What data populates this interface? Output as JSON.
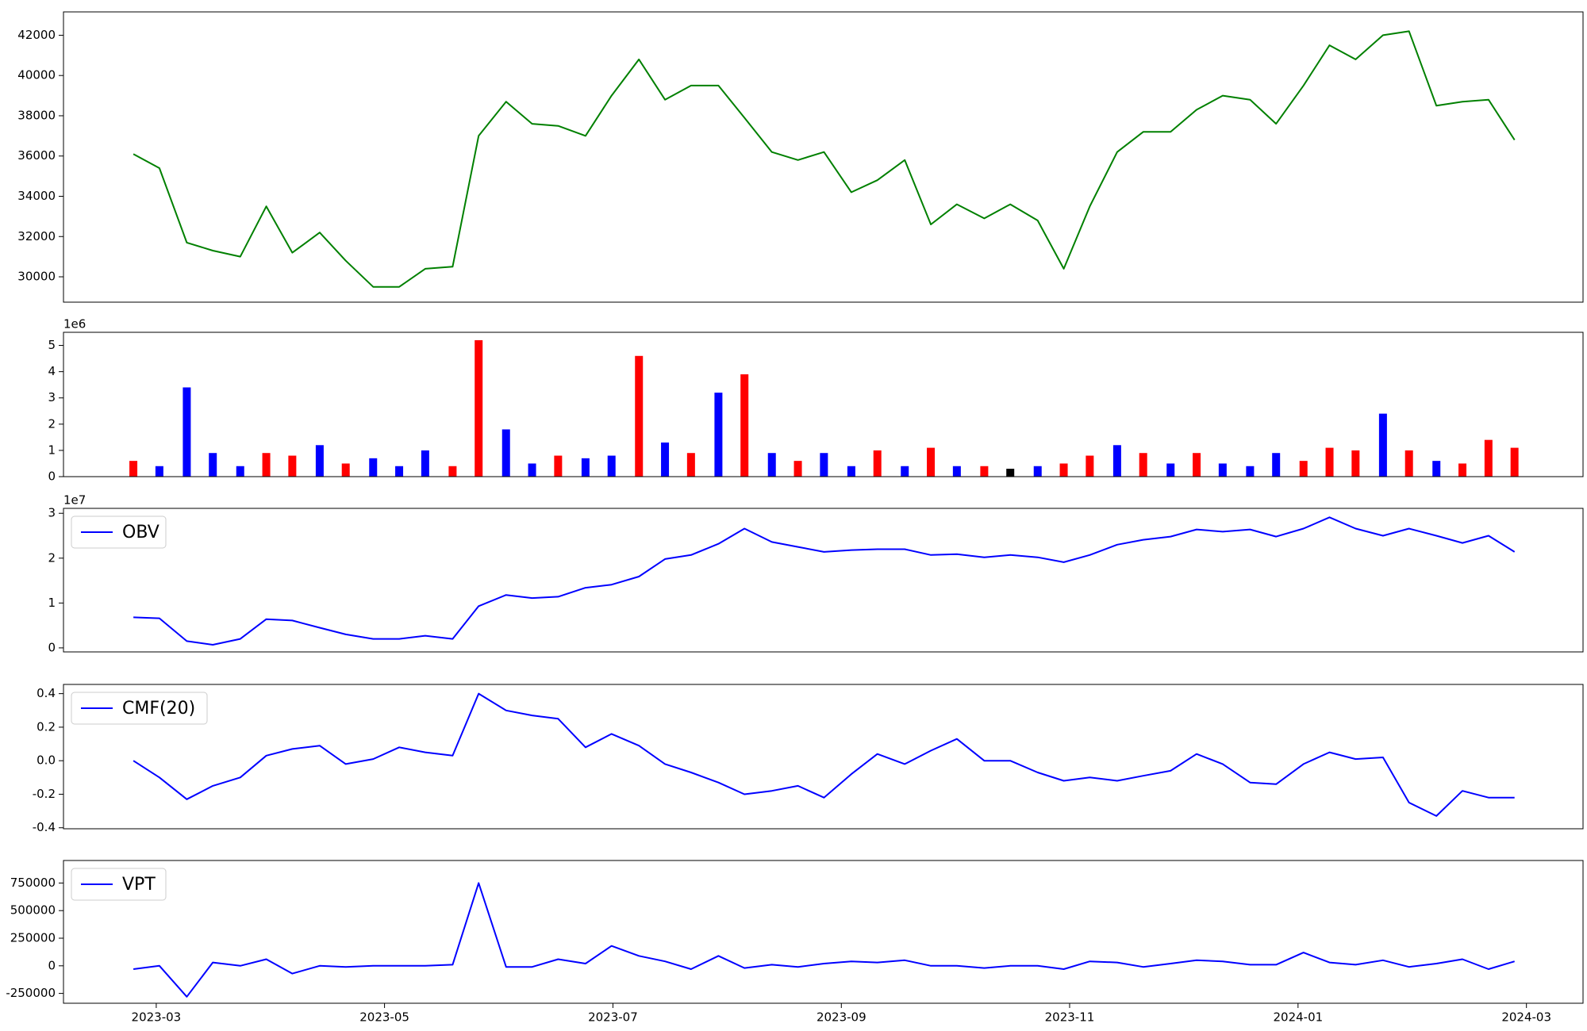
{
  "chart_data": {
    "type": "multi",
    "x": [
      2023.15,
      2023.169,
      2023.189,
      2023.208,
      2023.228,
      2023.247,
      2023.266,
      2023.286,
      2023.305,
      2023.325,
      2023.344,
      2023.363,
      2023.383,
      2023.402,
      2023.422,
      2023.441,
      2023.46,
      2023.48,
      2023.499,
      2023.519,
      2023.538,
      2023.557,
      2023.577,
      2023.596,
      2023.616,
      2023.635,
      2023.654,
      2023.674,
      2023.693,
      2023.713,
      2023.732,
      2023.751,
      2023.771,
      2023.79,
      2023.81,
      2023.829,
      2023.848,
      2023.868,
      2023.887,
      2023.907,
      2023.926,
      2023.945,
      2023.965,
      2023.984,
      2024.004,
      2024.023,
      2024.042,
      2024.062,
      2024.081,
      2024.101,
      2024.12,
      2024.139,
      2024.158
    ],
    "xlim": [
      2023.099,
      2024.208
    ],
    "xticks": [
      {
        "value": 2023.1667,
        "label": "2023-03"
      },
      {
        "value": 2023.3333,
        "label": "2023-05"
      },
      {
        "value": 2023.5,
        "label": "2023-07"
      },
      {
        "value": 2023.6667,
        "label": "2023-09"
      },
      {
        "value": 2023.8333,
        "label": "2023-11"
      },
      {
        "value": 2024.0,
        "label": "2024-01"
      },
      {
        "value": 2024.1667,
        "label": "2024-03"
      }
    ],
    "panels": [
      {
        "type": "line",
        "ylim": [
          28740,
          43160
        ],
        "yticks": [
          30000,
          32000,
          34000,
          36000,
          38000,
          40000,
          42000
        ],
        "series": [
          {
            "color": "#008000",
            "values": [
              36100,
              35400,
              31700,
              31300,
              31000,
              33500,
              31200,
              32200,
              30800,
              29500,
              29500,
              30400,
              30500,
              37000,
              38700,
              37600,
              37500,
              37000,
              39000,
              40800,
              38800,
              39500,
              39500,
              37900,
              36200,
              35800,
              36200,
              34200,
              34800,
              35800,
              32600,
              33600,
              32900,
              33600,
              32800,
              30400,
              33500,
              36200,
              37200,
              37200,
              38300,
              39000,
              38800,
              37600,
              39500,
              41500,
              40800,
              42000,
              42200,
              38500,
              38700,
              38800,
              36800
            ]
          }
        ]
      },
      {
        "type": "bar",
        "ylim": [
          0,
          5.5
        ],
        "yticks": [
          0,
          1,
          2,
          3,
          4,
          5
        ],
        "offset_label": "1e6",
        "values": [
          0.6,
          0.4,
          3.4,
          0.9,
          0.4,
          0.9,
          0.8,
          1.2,
          0.5,
          0.7,
          0.4,
          1.0,
          0.4,
          5.2,
          1.8,
          0.5,
          0.8,
          0.7,
          0.8,
          4.6,
          1.3,
          0.9,
          3.2,
          3.9,
          0.9,
          0.6,
          0.9,
          0.4,
          1.0,
          0.4,
          1.1,
          0.4,
          0.4,
          0.3,
          0.4,
          0.5,
          0.8,
          1.2,
          0.9,
          0.5,
          0.9,
          0.5,
          0.4,
          0.9,
          0.6,
          1.1,
          1.0,
          2.4,
          1.0,
          0.6,
          0.5,
          1.4,
          1.1
        ],
        "colors": [
          "red",
          "blue",
          "blue",
          "blue",
          "blue",
          "red",
          "red",
          "blue",
          "red",
          "blue",
          "blue",
          "blue",
          "red",
          "red",
          "blue",
          "blue",
          "red",
          "blue",
          "blue",
          "red",
          "blue",
          "red",
          "blue",
          "red",
          "blue",
          "red",
          "blue",
          "blue",
          "red",
          "blue",
          "red",
          "blue",
          "red",
          "black",
          "blue",
          "red",
          "red",
          "blue",
          "red",
          "blue",
          "red",
          "blue",
          "blue",
          "blue",
          "red",
          "red",
          "red",
          "blue",
          "red",
          "blue",
          "red",
          "red",
          "red"
        ]
      },
      {
        "type": "line",
        "ylim": [
          -0.09,
          3.11
        ],
        "yticks": [
          0,
          1,
          2,
          3
        ],
        "offset_label": "1e7",
        "legend": "upper left",
        "series": [
          {
            "name": "OBV",
            "color": "#0000ff",
            "values": [
              0.68,
              0.66,
              0.15,
              0.07,
              0.2,
              0.64,
              0.61,
              0.45,
              0.3,
              0.2,
              0.2,
              0.27,
              0.2,
              0.93,
              1.18,
              1.11,
              1.14,
              1.34,
              1.41,
              1.59,
              1.98,
              2.07,
              2.32,
              2.66,
              2.36,
              2.25,
              2.14,
              2.18,
              2.2,
              2.2,
              2.07,
              2.09,
              2.02,
              2.07,
              2.02,
              1.91,
              2.07,
              2.3,
              2.41,
              2.48,
              2.64,
              2.59,
              2.64,
              2.48,
              2.66,
              2.91,
              2.66,
              2.5,
              2.66,
              2.5,
              2.34,
              2.5,
              2.14
            ]
          }
        ]
      },
      {
        "type": "line",
        "ylim": [
          -0.406,
          0.455
        ],
        "yticks": [
          -0.4,
          -0.2,
          {
            "value": 0,
            "label": "0.0"
          },
          0.2,
          0.4
        ],
        "legend": "upper left",
        "series": [
          {
            "name": "CMF(20)",
            "color": "#0000ff",
            "values": [
              0.0,
              -0.1,
              -0.23,
              -0.15,
              -0.1,
              0.03,
              0.07,
              0.09,
              -0.02,
              0.01,
              0.08,
              0.05,
              0.03,
              0.4,
              0.3,
              0.27,
              0.25,
              0.08,
              0.16,
              0.09,
              -0.02,
              -0.07,
              -0.13,
              -0.2,
              -0.18,
              -0.15,
              -0.22,
              -0.08,
              0.04,
              -0.02,
              0.06,
              0.13,
              0.0,
              0.0,
              -0.07,
              -0.12,
              -0.1,
              -0.12,
              -0.09,
              -0.06,
              0.04,
              -0.02,
              -0.13,
              -0.14,
              -0.02,
              0.05,
              0.01,
              0.02,
              -0.25,
              -0.33,
              -0.18,
              -0.22,
              -0.22
            ]
          }
        ]
      },
      {
        "type": "line",
        "ylim": [
          -339000,
          954000
        ],
        "yticks": [
          -250000,
          0,
          250000,
          500000,
          750000
        ],
        "legend": "upper left",
        "series": [
          {
            "name": "VPT",
            "color": "#0000ff",
            "values": [
              -30000,
              0,
              -280000,
              30000,
              0,
              60000,
              -70000,
              0,
              -10000,
              0,
              0,
              0,
              10000,
              750000,
              -10000,
              -10000,
              60000,
              20000,
              180000,
              90000,
              40000,
              -30000,
              90000,
              -20000,
              10000,
              -10000,
              20000,
              40000,
              30000,
              50000,
              0,
              0,
              -20000,
              0,
              0,
              -30000,
              40000,
              30000,
              -10000,
              20000,
              50000,
              40000,
              10000,
              10000,
              120000,
              30000,
              10000,
              50000,
              -10000,
              20000,
              60000,
              -30000,
              40000
            ]
          }
        ]
      }
    ]
  }
}
